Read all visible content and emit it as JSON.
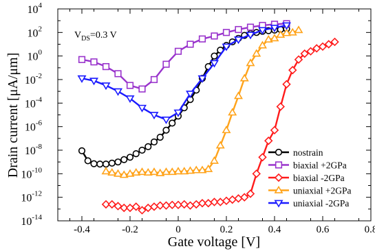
{
  "chart_data": {
    "type": "line",
    "title": "",
    "xlabel": "Gate voltage [V]",
    "ylabel": "Drain current [μA/μm]",
    "xlim": [
      -0.5,
      0.8
    ],
    "ylim_log10": [
      -14,
      4
    ],
    "yscale": "log",
    "x_ticks": [
      -0.4,
      -0.2,
      0,
      0.2,
      0.4,
      0.6,
      0.8
    ],
    "x_tick_labels": [
      "-0.4",
      "-0.2",
      "0",
      "0.2",
      "0.4",
      "0.6",
      "0.8"
    ],
    "y_tick_exponents": [
      -14,
      -12,
      -10,
      -8,
      -6,
      -4,
      -2,
      0,
      2,
      4
    ],
    "y_tick_base": "10",
    "y_tick_sup": [
      "-14",
      "-12",
      "-10",
      "-8",
      "-6",
      "-4",
      "-2",
      "0",
      "2",
      "4"
    ],
    "annotation": {
      "main": "V",
      "sub": "DS",
      "rest": "=0.3 V"
    },
    "legend_position": "bottom-right",
    "grid": false,
    "series": [
      {
        "name": "nostrain",
        "color": "#000000",
        "marker": "circle",
        "x": [
          -0.4,
          -0.375,
          -0.35,
          -0.325,
          -0.3,
          -0.275,
          -0.25,
          -0.225,
          -0.2,
          -0.175,
          -0.15,
          -0.125,
          -0.1,
          -0.075,
          -0.05,
          -0.025,
          0.0,
          0.025,
          0.05,
          0.075,
          0.1,
          0.125,
          0.15,
          0.175,
          0.2,
          0.225,
          0.25,
          0.275,
          0.3,
          0.325,
          0.35,
          0.375,
          0.4,
          0.425,
          0.45
        ],
        "log10_y": [
          -8.05,
          -8.9,
          -9.15,
          -9.18,
          -9.18,
          -9.1,
          -9.0,
          -8.8,
          -8.6,
          -8.3,
          -8.0,
          -7.7,
          -7.3,
          -6.9,
          -6.3,
          -5.7,
          -5.1,
          -4.4,
          -3.7,
          -2.9,
          -1.9,
          -0.9,
          0.0,
          0.5,
          0.9,
          1.2,
          1.5,
          1.75,
          1.9,
          2.0,
          2.1,
          2.15,
          2.2,
          2.25,
          2.3
        ]
      },
      {
        "name": "biaxial +2GPa",
        "color": "#9933cc",
        "marker": "square",
        "x": [
          -0.4,
          -0.35,
          -0.3,
          -0.25,
          -0.2,
          -0.15,
          -0.1,
          -0.05,
          0.0,
          0.05,
          0.1,
          0.15,
          0.2,
          0.25,
          0.3,
          0.35,
          0.4,
          0.45
        ],
        "log10_y": [
          -0.3,
          -0.5,
          -0.9,
          -1.5,
          -2.5,
          -2.8,
          -2.0,
          -0.7,
          0.4,
          1.0,
          1.45,
          1.7,
          2.0,
          2.25,
          2.45,
          2.6,
          2.7,
          2.75
        ]
      },
      {
        "name": "biaxial -2GPa",
        "color": "#ff1a1a",
        "marker": "diamond",
        "x": [
          -0.3,
          -0.275,
          -0.25,
          -0.225,
          -0.2,
          -0.175,
          -0.15,
          -0.125,
          -0.1,
          -0.075,
          -0.05,
          -0.025,
          0.0,
          0.025,
          0.05,
          0.075,
          0.1,
          0.125,
          0.15,
          0.175,
          0.2,
          0.225,
          0.25,
          0.275,
          0.3,
          0.325,
          0.35,
          0.375,
          0.4,
          0.425,
          0.45,
          0.475,
          0.5,
          0.525,
          0.55,
          0.575,
          0.6,
          0.625,
          0.65
        ],
        "log10_y": [
          -12.6,
          -12.6,
          -12.75,
          -12.9,
          -12.9,
          -12.8,
          -13.1,
          -12.9,
          -12.8,
          -12.7,
          -12.7,
          -12.65,
          -12.65,
          -12.6,
          -12.7,
          -12.6,
          -12.5,
          -12.5,
          -12.4,
          -12.4,
          -12.3,
          -12.2,
          -12.1,
          -12.0,
          -11.7,
          -10.0,
          -8.6,
          -7.2,
          -6.3,
          -4.3,
          -2.4,
          -1.2,
          -0.3,
          0.2,
          0.4,
          0.65,
          0.8,
          1.0,
          1.2
        ]
      },
      {
        "name": "uniaxial +2GPa",
        "color": "#ffa31a",
        "marker": "triangle-up",
        "x": [
          -0.3,
          -0.275,
          -0.25,
          -0.225,
          -0.2,
          -0.175,
          -0.15,
          -0.125,
          -0.1,
          -0.075,
          -0.05,
          -0.025,
          0.0,
          0.025,
          0.05,
          0.075,
          0.1,
          0.125,
          0.15,
          0.175,
          0.2,
          0.225,
          0.25,
          0.275,
          0.3,
          0.325,
          0.35,
          0.375,
          0.4,
          0.425,
          0.45,
          0.475,
          0.5
        ],
        "log10_y": [
          -9.8,
          -9.9,
          -10.0,
          -10.1,
          -10.0,
          -9.9,
          -9.85,
          -9.9,
          -9.85,
          -9.95,
          -9.85,
          -9.85,
          -9.8,
          -9.8,
          -9.75,
          -9.7,
          -9.7,
          -9.6,
          -8.9,
          -7.6,
          -6.3,
          -4.8,
          -3.4,
          -1.9,
          -0.6,
          0.2,
          0.9,
          1.4,
          1.5,
          1.8,
          1.95,
          2.0,
          2.2
        ]
      },
      {
        "name": "uniaxial -2GPa",
        "color": "#1a1aff",
        "marker": "triangle-down",
        "x": [
          -0.4,
          -0.35,
          -0.3,
          -0.25,
          -0.2,
          -0.15,
          -0.1,
          -0.05,
          0.0,
          0.05,
          0.1,
          0.15,
          0.2,
          0.25,
          0.3,
          0.35,
          0.4,
          0.45
        ],
        "log10_y": [
          -1.9,
          -2.1,
          -2.5,
          -3.0,
          -3.6,
          -4.4,
          -5.0,
          -5.4,
          -4.8,
          -3.2,
          -1.9,
          -0.6,
          0.8,
          1.4,
          1.8,
          2.2,
          2.4,
          2.6
        ]
      }
    ]
  }
}
